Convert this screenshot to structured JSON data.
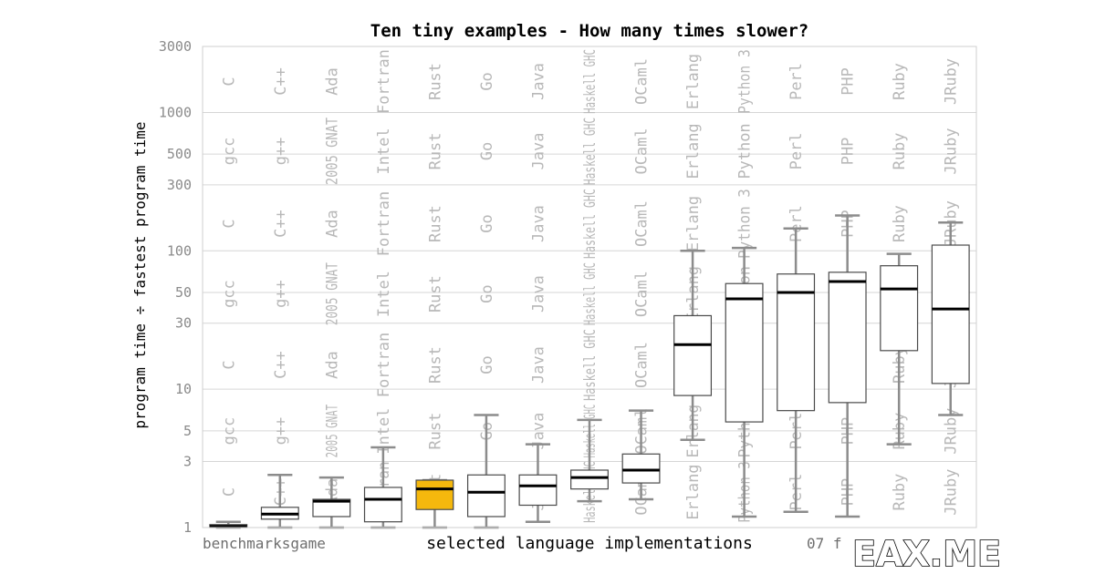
{
  "chart_data": {
    "type": "box",
    "title": "Ten tiny examples - How many times slower?",
    "ylabel": "program time ÷ fastest program time",
    "xlabel": "selected language implementations",
    "footer_left": "benchmarksgame",
    "footer_right": "07 f",
    "watermark": "EAX.ME",
    "y_scale": "log",
    "ylim": [
      1,
      3000
    ],
    "y_ticks": [
      1,
      3,
      5,
      10,
      30,
      50,
      100,
      300,
      500,
      1000,
      3000
    ],
    "grid": true,
    "highlight_color": "#f5b80d",
    "box_color": "#ffffff",
    "series": [
      {
        "left": "C",
        "right": "gcc",
        "min": 1.0,
        "q1": 1.0,
        "median": 1.02,
        "q3": 1.05,
        "max": 1.1,
        "highlight": false
      },
      {
        "left": "C++",
        "right": "g++",
        "min": 1.0,
        "q1": 1.15,
        "median": 1.25,
        "q3": 1.4,
        "max": 2.4,
        "highlight": false
      },
      {
        "left": "Ada",
        "right": "2005 GNAT",
        "min": 1.0,
        "q1": 1.2,
        "median": 1.55,
        "q3": 1.6,
        "max": 2.3,
        "highlight": false
      },
      {
        "left": "Fortran",
        "right": "Intel",
        "min": 1.0,
        "q1": 1.1,
        "median": 1.6,
        "q3": 1.95,
        "max": 3.8,
        "highlight": false
      },
      {
        "left": "Rust",
        "right": "Rust",
        "min": 1.0,
        "q1": 1.35,
        "median": 1.9,
        "q3": 2.2,
        "max": 2.2,
        "highlight": true
      },
      {
        "left": "Go",
        "right": "Go",
        "min": 1.0,
        "q1": 1.2,
        "median": 1.8,
        "q3": 2.4,
        "max": 6.5,
        "highlight": false
      },
      {
        "left": "Java",
        "right": "Java",
        "min": 1.1,
        "q1": 1.45,
        "median": 2.0,
        "q3": 2.4,
        "max": 4.0,
        "highlight": false
      },
      {
        "left": "Haskell GHC",
        "right": "Haskell GHC",
        "min": 1.55,
        "q1": 1.9,
        "median": 2.3,
        "q3": 2.6,
        "max": 6.0,
        "highlight": false
      },
      {
        "left": "OCaml",
        "right": "OCaml",
        "min": 1.6,
        "q1": 2.1,
        "median": 2.6,
        "q3": 3.4,
        "max": 7.0,
        "highlight": false
      },
      {
        "left": "Erlang",
        "right": "Erlang",
        "min": 4.3,
        "q1": 9.0,
        "median": 21.0,
        "q3": 34.0,
        "max": 100.0,
        "highlight": false
      },
      {
        "left": "Python 3",
        "right": "Python",
        "min": 1.2,
        "q1": 5.8,
        "median": 45.0,
        "q3": 58.0,
        "max": 105.0,
        "highlight": false
      },
      {
        "left": "Perl",
        "right": "Perl",
        "min": 1.3,
        "q1": 7.0,
        "median": 50.0,
        "q3": 68.0,
        "max": 145.0,
        "highlight": false
      },
      {
        "left": "PHP",
        "right": "PHP",
        "min": 1.2,
        "q1": 8.0,
        "median": 60.0,
        "q3": 70.0,
        "max": 180.0,
        "highlight": false
      },
      {
        "left": "Ruby",
        "right": "Ruby",
        "min": 4.0,
        "q1": 19.0,
        "median": 53.0,
        "q3": 78.0,
        "max": 95.0,
        "highlight": false
      },
      {
        "left": "JRuby",
        "right": "JRuby",
        "min": 6.5,
        "q1": 11.0,
        "median": 38.0,
        "q3": 110.0,
        "max": 160.0,
        "highlight": false
      }
    ]
  }
}
